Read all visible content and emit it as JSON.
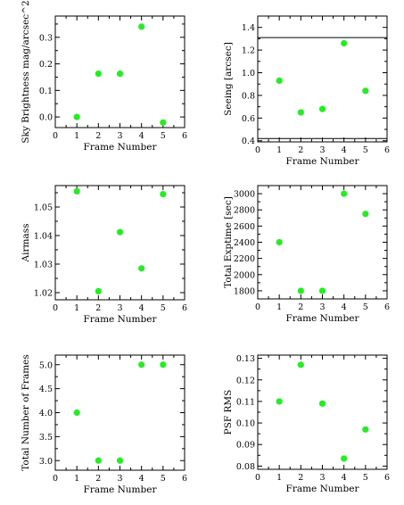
{
  "chart_data": [
    {
      "type": "scatter",
      "xlabel": "Frame Number",
      "ylabel": "Sky Brightness mag/arcsec^2",
      "xlim": [
        0,
        6
      ],
      "ylim": [
        -0.04,
        0.38
      ],
      "xticks": [
        "0",
        "1",
        "2",
        "3",
        "4",
        "5",
        "6"
      ],
      "yticks": [
        "0.0",
        "0.1",
        "0.2",
        "0.3"
      ],
      "x": [
        1,
        2,
        3,
        4,
        5
      ],
      "y": [
        0.0,
        0.163,
        0.163,
        0.34,
        -0.021
      ]
    },
    {
      "type": "scatter",
      "xlabel": "Frame Number",
      "ylabel": "Seeing [arcsec]",
      "xlim": [
        0,
        6
      ],
      "ylim": [
        0.39,
        1.5
      ],
      "xticks": [
        "0",
        "1",
        "2",
        "3",
        "4",
        "5",
        "6"
      ],
      "yticks": [
        "0.4",
        "0.6",
        "0.8",
        "1.0",
        "1.2",
        "1.4"
      ],
      "x": [
        1,
        2,
        3,
        4,
        5
      ],
      "y": [
        0.93,
        0.65,
        0.68,
        1.26,
        0.84
      ],
      "hlines": [
        1.31,
        0.42
      ]
    },
    {
      "type": "scatter",
      "xlabel": "Frame Number",
      "ylabel": "Airmass",
      "xlim": [
        0,
        6
      ],
      "ylim": [
        1.0175,
        1.0575
      ],
      "xticks": [
        "0",
        "1",
        "2",
        "3",
        "4",
        "5",
        "6"
      ],
      "yticks": [
        "1.02",
        "1.03",
        "1.04",
        "1.05"
      ],
      "x": [
        1,
        2,
        3,
        4,
        5
      ],
      "y": [
        1.0555,
        1.0205,
        1.0412,
        1.0285,
        1.0545
      ]
    },
    {
      "type": "scatter",
      "xlabel": "Frame Number",
      "ylabel": "Total Exptime [sec]",
      "xlim": [
        0,
        6
      ],
      "ylim": [
        1700,
        3100
      ],
      "xticks": [
        "0",
        "1",
        "2",
        "3",
        "4",
        "5",
        "6"
      ],
      "yticks": [
        "1800",
        "2000",
        "2200",
        "2400",
        "2600",
        "2800",
        "3000"
      ],
      "x": [
        1,
        2,
        3,
        4,
        5
      ],
      "y": [
        2400,
        1800,
        1800,
        3000,
        2750
      ]
    },
    {
      "type": "scatter",
      "xlabel": "Frame Number",
      "ylabel": "Total Number of Frames",
      "xlim": [
        0,
        6
      ],
      "ylim": [
        2.8,
        5.2
      ],
      "xticks": [
        "0",
        "1",
        "2",
        "3",
        "4",
        "5",
        "6"
      ],
      "yticks": [
        "3.0",
        "3.5",
        "4.0",
        "4.5",
        "5.0"
      ],
      "x": [
        1,
        2,
        3,
        4,
        5
      ],
      "y": [
        4,
        3,
        3,
        5,
        5
      ]
    },
    {
      "type": "scatter",
      "xlabel": "Frame Number",
      "ylabel": "PSF RMS",
      "xlim": [
        0,
        6
      ],
      "ylim": [
        0.0785,
        0.1315
      ],
      "xticks": [
        "0",
        "1",
        "2",
        "3",
        "4",
        "5",
        "6"
      ],
      "yticks": [
        "0.08",
        "0.09",
        "0.10",
        "0.11",
        "0.12",
        "0.13"
      ],
      "x": [
        1,
        2,
        3,
        4,
        5
      ],
      "y": [
        0.11,
        0.127,
        0.109,
        0.0835,
        0.097
      ]
    }
  ],
  "style": {
    "marker_color": "#22ee22",
    "axis_color": "#000000"
  }
}
